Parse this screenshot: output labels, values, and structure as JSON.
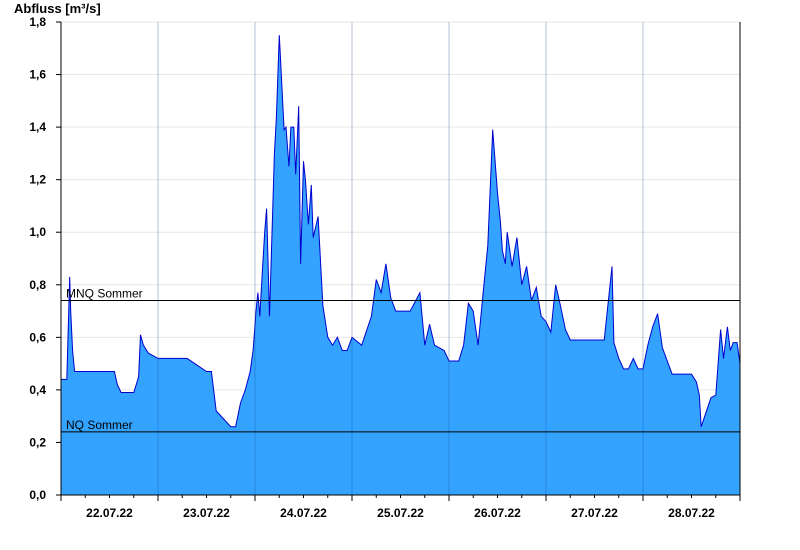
{
  "chart_data": {
    "type": "area",
    "ylabel": "Abfluss [m³/s]",
    "xlabel": "",
    "title": "",
    "ylim": [
      0,
      1.8
    ],
    "yticks": [
      "0,0",
      "0,2",
      "0,4",
      "0,6",
      "0,8",
      "1,0",
      "1,2",
      "1,4",
      "1,6",
      "1,8"
    ],
    "ytick_values": [
      0,
      0.2,
      0.4,
      0.6,
      0.8,
      1.0,
      1.2,
      1.4,
      1.6,
      1.8
    ],
    "xlim_days": [
      0,
      7
    ],
    "x_unit": "days from 22.07.22 00:00",
    "xtick_labels": [
      "22.07.22",
      "23.07.22",
      "24.07.22",
      "25.07.22",
      "26.07.22",
      "27.07.22",
      "28.07.22"
    ],
    "reference_lines": [
      {
        "label": "MNQ Sommer",
        "value": 0.74
      },
      {
        "label": "NQ Sommer",
        "value": 0.24
      }
    ],
    "fill_color": "#33a3ff",
    "line_color": "#0000cc",
    "series": [
      {
        "x": [
          0,
          0.06,
          0.09,
          0.1,
          0.12,
          0.14,
          0.18,
          0.3,
          0.45,
          0.55,
          0.58,
          0.62,
          0.75,
          0.8,
          0.82,
          0.85,
          0.9,
          1.0,
          1.3,
          1.5,
          1.55,
          1.6,
          1.75,
          1.8,
          1.85,
          1.9,
          1.95,
          1.98,
          2.01,
          2.03,
          2.05,
          2.08,
          2.1,
          2.12,
          2.15,
          2.2,
          2.22,
          2.25,
          2.3,
          2.32,
          2.35,
          2.37,
          2.4,
          2.42,
          2.45,
          2.47,
          2.5,
          2.52,
          2.55,
          2.58,
          2.6,
          2.65,
          2.7,
          2.75,
          2.8,
          2.85,
          2.9,
          2.95,
          3.0,
          3.1,
          3.2,
          3.25,
          3.3,
          3.35,
          3.4,
          3.45,
          3.5,
          3.55,
          3.6,
          3.7,
          3.75,
          3.8,
          3.85,
          3.9,
          3.95,
          4.0,
          4.05,
          4.1,
          4.15,
          4.2,
          4.25,
          4.3,
          4.35,
          4.4,
          4.45,
          4.5,
          4.53,
          4.55,
          4.58,
          4.6,
          4.65,
          4.7,
          4.75,
          4.8,
          4.85,
          4.9,
          4.95,
          5.0,
          5.05,
          5.1,
          5.15,
          5.2,
          5.25,
          5.3,
          5.4,
          5.5,
          5.6,
          5.68,
          5.7,
          5.75,
          5.8,
          5.85,
          5.9,
          5.95,
          6.0,
          6.05,
          6.1,
          6.15,
          6.2,
          6.3,
          6.4,
          6.5,
          6.55,
          6.58,
          6.6,
          6.7,
          6.75,
          6.8,
          6.83,
          6.87,
          6.9,
          6.93,
          6.97,
          7.0
        ],
        "y": [
          0.44,
          0.44,
          0.83,
          0.7,
          0.55,
          0.47,
          0.47,
          0.47,
          0.47,
          0.47,
          0.42,
          0.39,
          0.39,
          0.45,
          0.61,
          0.57,
          0.54,
          0.52,
          0.52,
          0.47,
          0.47,
          0.32,
          0.26,
          0.26,
          0.35,
          0.4,
          0.47,
          0.55,
          0.7,
          0.77,
          0.68,
          0.88,
          1.0,
          1.09,
          0.68,
          1.3,
          1.43,
          1.75,
          1.39,
          1.4,
          1.25,
          1.4,
          1.4,
          1.22,
          1.48,
          0.88,
          1.27,
          1.2,
          1.03,
          1.18,
          0.98,
          1.06,
          0.72,
          0.6,
          0.57,
          0.6,
          0.55,
          0.55,
          0.6,
          0.57,
          0.68,
          0.82,
          0.77,
          0.88,
          0.75,
          0.7,
          0.7,
          0.7,
          0.7,
          0.77,
          0.57,
          0.65,
          0.57,
          0.56,
          0.55,
          0.51,
          0.51,
          0.51,
          0.57,
          0.73,
          0.7,
          0.57,
          0.76,
          0.95,
          1.39,
          1.15,
          1.04,
          0.93,
          0.88,
          1.0,
          0.87,
          0.98,
          0.8,
          0.87,
          0.74,
          0.79,
          0.68,
          0.66,
          0.62,
          0.8,
          0.72,
          0.63,
          0.59,
          0.59,
          0.59,
          0.59,
          0.59,
          0.87,
          0.58,
          0.52,
          0.48,
          0.48,
          0.52,
          0.48,
          0.48,
          0.57,
          0.64,
          0.69,
          0.56,
          0.46,
          0.46,
          0.46,
          0.43,
          0.38,
          0.26,
          0.37,
          0.38,
          0.63,
          0.52,
          0.64,
          0.55,
          0.58,
          0.58,
          0.5
        ]
      }
    ],
    "grid": "horizontal"
  }
}
